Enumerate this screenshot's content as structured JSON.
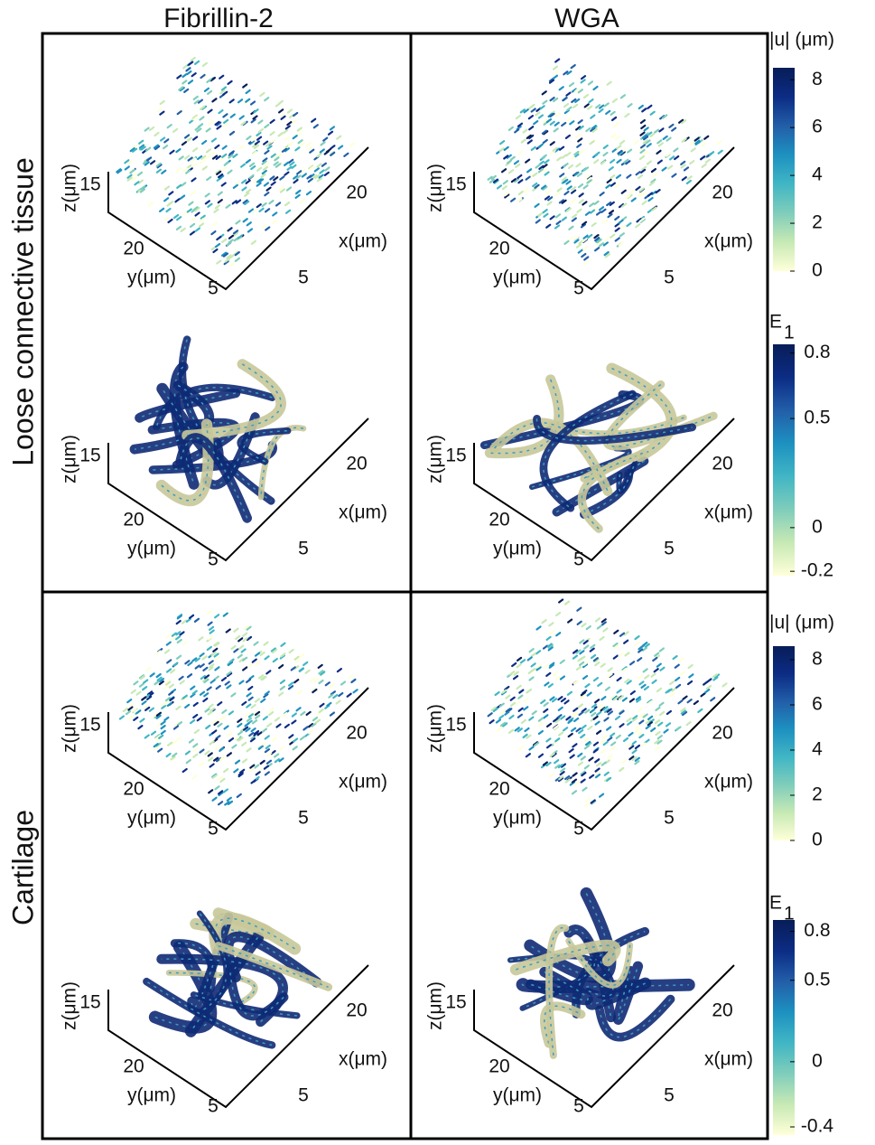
{
  "column_headers": [
    "Fibrillin-2",
    "WGA"
  ],
  "row_labels": [
    "Loose connective tissue",
    "Cartilage"
  ],
  "panels": [
    {
      "kind": "vectors",
      "z_label": "z(μm)",
      "y_label": "y(μm)",
      "x_label": "x(μm)",
      "z_tick": 15,
      "y_ticks": [
        20,
        5
      ],
      "x_ticks": [
        20,
        5
      ]
    },
    {
      "kind": "vectors",
      "z_label": "z(μm)",
      "y_label": "y(μm)",
      "x_label": "x(μm)",
      "z_tick": 15,
      "y_ticks": [
        20,
        5
      ],
      "x_ticks": [
        20,
        5
      ]
    },
    {
      "kind": "surface",
      "z_label": "z(μm)",
      "y_label": "y(μm)",
      "x_label": "x(μm)",
      "z_tick": 15,
      "y_ticks": [
        20,
        5
      ],
      "x_ticks": [
        20,
        5
      ]
    },
    {
      "kind": "surface",
      "z_label": "z(μm)",
      "y_label": "y(μm)",
      "x_label": "x(μm)",
      "z_tick": 15,
      "y_ticks": [
        20,
        5
      ],
      "x_ticks": [
        20,
        5
      ]
    },
    {
      "kind": "vectors",
      "z_label": "z(μm)",
      "y_label": "y(μm)",
      "x_label": "x(μm)",
      "z_tick": 15,
      "y_ticks": [
        20,
        5
      ],
      "x_ticks": [
        20,
        5
      ]
    },
    {
      "kind": "vectors",
      "z_label": "z(μm)",
      "y_label": "y(μm)",
      "x_label": "x(μm)",
      "z_tick": 15,
      "y_ticks": [
        20,
        5
      ],
      "x_ticks": [
        20,
        5
      ]
    },
    {
      "kind": "surface",
      "z_label": "z(μm)",
      "y_label": "y(μm)",
      "x_label": "x(μm)",
      "z_tick": 15,
      "y_ticks": [
        20,
        5
      ],
      "x_ticks": [
        20,
        5
      ]
    },
    {
      "kind": "surface",
      "z_label": "z(μm)",
      "y_label": "y(μm)",
      "x_label": "x(μm)",
      "z_tick": 15,
      "y_ticks": [
        20,
        5
      ],
      "x_ticks": [
        20,
        5
      ]
    }
  ],
  "colorbars": [
    {
      "title": "|u| (μm)",
      "lim": [
        0,
        8.5
      ],
      "ticks": [
        0,
        2,
        4,
        6,
        8
      ]
    },
    {
      "title": "E",
      "title_sub": "1",
      "lim": [
        -0.22,
        0.84
      ],
      "ticks": [
        -0.2,
        0,
        0.5,
        0.8
      ]
    },
    {
      "title": "|u| (μm)",
      "lim": [
        0,
        8.6
      ],
      "ticks": [
        0,
        2,
        4,
        6,
        8
      ]
    },
    {
      "title": "E",
      "title_sub": "1",
      "lim": [
        -0.45,
        0.87
      ],
      "ticks": [
        -0.4,
        0,
        0.5,
        0.8
      ]
    }
  ],
  "colormap": [
    "#ffffd9",
    "#c7e9b4",
    "#7fcdbb",
    "#41b6c4",
    "#1d91c0",
    "#225ea8",
    "#0c2c84",
    "#081d58"
  ]
}
